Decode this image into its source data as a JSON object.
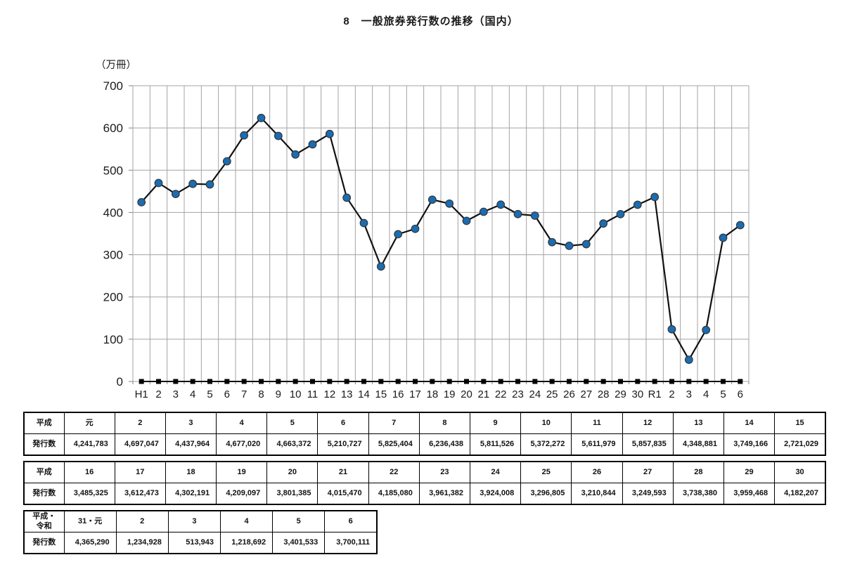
{
  "page": {
    "title": "8　一般旅券発行数の推移（国内）"
  },
  "chart_data": {
    "type": "line",
    "title": "8　一般旅券発行数の推移（国内）",
    "unit_label": "（万冊）",
    "ylim": [
      0,
      700
    ],
    "ytick_step": 100,
    "grid": true,
    "legend": "none",
    "x_labels": [
      "H1",
      "2",
      "3",
      "4",
      "5",
      "6",
      "7",
      "8",
      "9",
      "10",
      "11",
      "12",
      "13",
      "14",
      "15",
      "16",
      "17",
      "18",
      "19",
      "20",
      "21",
      "22",
      "23",
      "24",
      "25",
      "26",
      "27",
      "28",
      "29",
      "30",
      "R1",
      "2",
      "3",
      "4",
      "5",
      "6"
    ],
    "main_series": {
      "marker": "circle",
      "marker_color": "#1b6cb0",
      "marker_edge_color": "#33373c",
      "line_color": "#111111",
      "values": [
        424.1783,
        469.7047,
        443.7964,
        467.702,
        466.3372,
        521.0727,
        582.5404,
        623.6438,
        581.1526,
        537.2272,
        561.1979,
        585.7835,
        434.8881,
        374.9166,
        272.1029,
        348.5325,
        361.2473,
        430.2191,
        420.9097,
        380.1385,
        401.547,
        418.508,
        396.1382,
        392.4008,
        329.6805,
        321.0844,
        324.9593,
        373.838,
        395.9468,
        418.2207,
        436.529,
        123.4928,
        51.3943,
        121.8692,
        340.1533,
        370.0111
      ]
    },
    "baseline_series": {
      "marker": "square",
      "marker_color": "#000000",
      "line_color": "#111111",
      "values": [
        0,
        0,
        0,
        0,
        0,
        0,
        0,
        0,
        0,
        0,
        0,
        0,
        0,
        0,
        0,
        0,
        0,
        0,
        0,
        0,
        0,
        0,
        0,
        0,
        0,
        0,
        0,
        0,
        0,
        0,
        0,
        0,
        0,
        0,
        0,
        0
      ]
    },
    "grid_color": "#a3a3a3",
    "axis_color": "#808080"
  },
  "tables": [
    {
      "era_label_lines": [
        "平成"
      ],
      "value_label": "発行数",
      "columns": [
        "元",
        "2",
        "3",
        "4",
        "5",
        "6",
        "7",
        "8",
        "9",
        "10",
        "11",
        "12",
        "13",
        "14",
        "15"
      ],
      "values": [
        "4,241,783",
        "4,697,047",
        "4,437,964",
        "4,677,020",
        "4,663,372",
        "5,210,727",
        "5,825,404",
        "6,236,438",
        "5,811,526",
        "5,372,272",
        "5,611,979",
        "5,857,835",
        "4,348,881",
        "3,749,166",
        "2,721,029"
      ]
    },
    {
      "era_label_lines": [
        "平成"
      ],
      "value_label": "発行数",
      "columns": [
        "16",
        "17",
        "18",
        "19",
        "20",
        "21",
        "22",
        "23",
        "24",
        "25",
        "26",
        "27",
        "28",
        "29",
        "30"
      ],
      "values": [
        "3,485,325",
        "3,612,473",
        "4,302,191",
        "4,209,097",
        "3,801,385",
        "4,015,470",
        "4,185,080",
        "3,961,382",
        "3,924,008",
        "3,296,805",
        "3,210,844",
        "3,249,593",
        "3,738,380",
        "3,959,468",
        "4,182,207"
      ]
    },
    {
      "era_label_lines": [
        "平成・",
        "令和"
      ],
      "value_label": "発行数",
      "columns": [
        "31・元",
        "2",
        "3",
        "4",
        "5",
        "6"
      ],
      "values": [
        "4,365,290",
        "1,234,928",
        "513,943",
        "1,218,692",
        "3,401,533",
        "3,700,111"
      ]
    }
  ]
}
